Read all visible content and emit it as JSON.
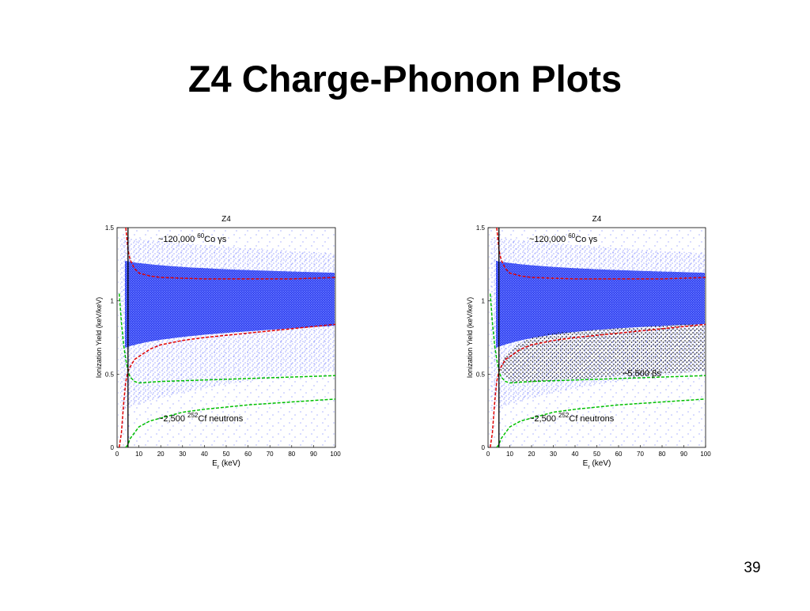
{
  "slide_title": "Z4 Charge-Phonon Plots",
  "page_number": "39",
  "chart_data": [
    {
      "type": "scatter",
      "title": "Z4",
      "y_label": "Ionization Yield (keV/keV)",
      "x_label": {
        "main": "E",
        "sub": "r",
        "rest": " (keV)"
      },
      "xlim": [
        0,
        100
      ],
      "ylim": [
        0,
        1.5
      ],
      "xticks": [
        0,
        10,
        20,
        30,
        40,
        50,
        60,
        70,
        80,
        90,
        100
      ],
      "yticks": [
        0,
        0.5,
        1,
        1.5
      ],
      "annotations": [
        {
          "text": "~120,000 ",
          "sup": "60",
          "rest": "Co γs"
        },
        {
          "text": "~2,500 ",
          "sup": "252",
          "rest": "Cf neutrons"
        }
      ],
      "series": [
        {
          "color": "#e00000",
          "line_style": "dashed",
          "x": [
            4,
            5,
            6,
            8,
            10,
            15,
            20,
            30,
            40,
            60,
            80,
            100
          ],
          "y": [
            1.5,
            1.35,
            1.28,
            1.22,
            1.19,
            1.17,
            1.16,
            1.155,
            1.15,
            1.15,
            1.15,
            1.16
          ]
        },
        {
          "color": "#e00000",
          "line_style": "dashed",
          "x": [
            1,
            2,
            3,
            4,
            5,
            6,
            8,
            10,
            15,
            20,
            30,
            40,
            60,
            80,
            100
          ],
          "y": [
            0,
            0.1,
            0.3,
            0.45,
            0.52,
            0.55,
            0.6,
            0.62,
            0.67,
            0.7,
            0.73,
            0.75,
            0.78,
            0.81,
            0.84
          ]
        },
        {
          "color": "#00c000",
          "line_style": "dashed",
          "x": [
            1,
            2,
            3,
            4,
            5,
            6,
            8,
            10,
            20,
            40,
            60,
            80,
            100
          ],
          "y": [
            1.05,
            0.85,
            0.7,
            0.6,
            0.52,
            0.48,
            0.45,
            0.44,
            0.45,
            0.46,
            0.47,
            0.48,
            0.49
          ]
        },
        {
          "color": "#00c000",
          "line_style": "dashed",
          "x": [
            4,
            5,
            6,
            8,
            10,
            15,
            20,
            30,
            40,
            60,
            80,
            100
          ],
          "y": [
            0,
            0.02,
            0.06,
            0.1,
            0.14,
            0.18,
            0.2,
            0.24,
            0.26,
            0.29,
            0.31,
            0.33
          ]
        },
        {
          "color": "#000000",
          "line_style": "solid",
          "x": [
            5,
            5
          ],
          "y": [
            0,
            1.5
          ]
        }
      ]
    },
    {
      "type": "scatter",
      "title": "Z4",
      "y_label": "Ionization Yield (keV/keV)",
      "x_label": {
        "main": "E",
        "sub": "r",
        "rest": " (keV)"
      },
      "xlim": [
        0,
        100
      ],
      "ylim": [
        0,
        1.5
      ],
      "xticks": [
        0,
        10,
        20,
        30,
        40,
        50,
        60,
        70,
        80,
        90,
        100
      ],
      "yticks": [
        0,
        0.5,
        1,
        1.5
      ],
      "annotations": [
        {
          "text": "~120,000 ",
          "sup": "60",
          "rest": "Co γs"
        },
        {
          "text": "~2,500 ",
          "sup": "252",
          "rest": "Cf neutrons"
        },
        {
          "text": "~5,500 βs"
        }
      ],
      "series": [
        {
          "color": "#e00000",
          "line_style": "dashed",
          "x": [
            4,
            5,
            6,
            8,
            10,
            15,
            20,
            30,
            40,
            60,
            80,
            100
          ],
          "y": [
            1.5,
            1.35,
            1.28,
            1.22,
            1.19,
            1.17,
            1.16,
            1.155,
            1.15,
            1.15,
            1.15,
            1.16
          ]
        },
        {
          "color": "#e00000",
          "line_style": "dashed",
          "x": [
            1,
            2,
            3,
            4,
            5,
            6,
            8,
            10,
            15,
            20,
            30,
            40,
            60,
            80,
            100
          ],
          "y": [
            0,
            0.1,
            0.3,
            0.45,
            0.52,
            0.55,
            0.6,
            0.62,
            0.67,
            0.7,
            0.73,
            0.75,
            0.78,
            0.81,
            0.84
          ]
        },
        {
          "color": "#00c000",
          "line_style": "dashed",
          "x": [
            1,
            2,
            3,
            4,
            5,
            6,
            8,
            10,
            20,
            40,
            60,
            80,
            100
          ],
          "y": [
            1.05,
            0.85,
            0.7,
            0.6,
            0.52,
            0.48,
            0.45,
            0.44,
            0.45,
            0.46,
            0.47,
            0.48,
            0.49
          ]
        },
        {
          "color": "#00c000",
          "line_style": "dashed",
          "x": [
            4,
            5,
            6,
            8,
            10,
            15,
            20,
            30,
            40,
            60,
            80,
            100
          ],
          "y": [
            0,
            0.02,
            0.06,
            0.1,
            0.14,
            0.18,
            0.2,
            0.24,
            0.26,
            0.29,
            0.31,
            0.33
          ]
        },
        {
          "color": "#000000",
          "line_style": "solid",
          "x": [
            5,
            5
          ],
          "y": [
            0,
            1.5
          ]
        }
      ]
    }
  ]
}
